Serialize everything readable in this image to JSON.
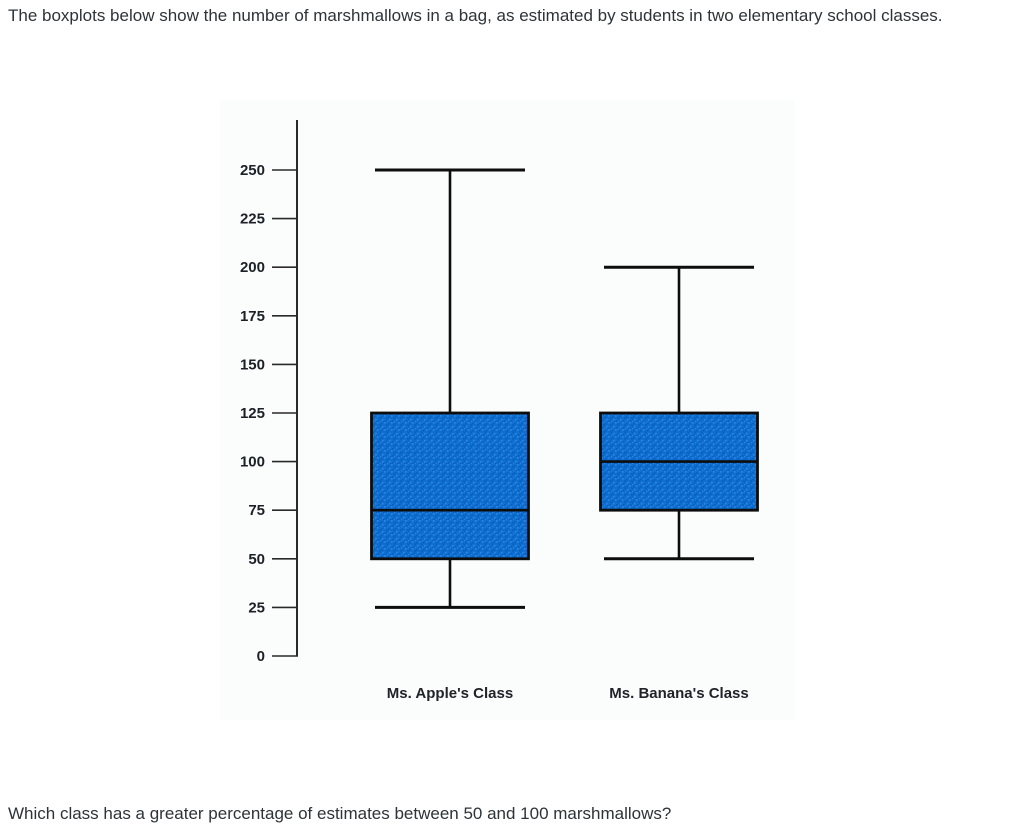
{
  "page": {
    "intro_text": "The boxplots below show the number of marshmallows in a bag, as estimated by students in two elementary school classes.",
    "question_text": "Which class has a greater percentage of estimates between 50 and 100 marshmallows?"
  },
  "chart_data": {
    "type": "boxplot",
    "title": "",
    "xlabel": "",
    "ylabel": "",
    "categories": [
      "Ms. Apple's Class",
      "Ms. Banana's Class"
    ],
    "series": [
      {
        "name": "Ms. Apple's Class",
        "min": 25,
        "q1": 50,
        "median": 75,
        "q3": 125,
        "max": 250
      },
      {
        "name": "Ms. Banana's Class",
        "min": 50,
        "q1": 75,
        "median": 100,
        "q3": 125,
        "max": 200
      }
    ],
    "yticks": [
      0,
      25,
      50,
      75,
      100,
      125,
      150,
      175,
      200,
      225,
      250
    ],
    "ylim": [
      0,
      275
    ],
    "grid": false,
    "legend": "none",
    "colors": {
      "box_fill": "#0e70d2",
      "box_speckle_dark": "#0a5fb8",
      "box_speckle_light": "#2e84e6",
      "line_stroke": "#0d0d0d",
      "axis_stroke": "#2a2a2a",
      "tick_label": "#1c2127",
      "category_label": "#20242a"
    }
  }
}
